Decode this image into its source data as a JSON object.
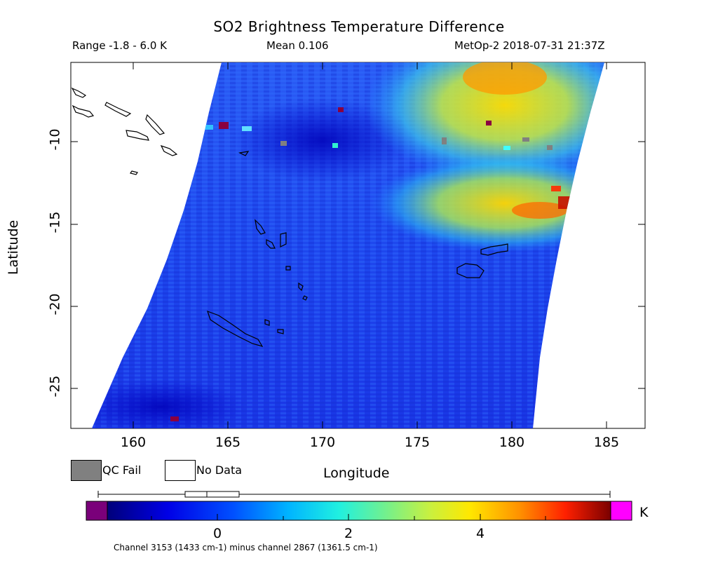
{
  "header": {
    "title": "SO2 Brightness Temperature Difference",
    "range": "Range -1.8 - 6.0 K",
    "mean": "Mean 0.106",
    "satellite_time": "MetOp-2 2018-07-31 21:37Z"
  },
  "axes": {
    "x_label": "Longitude",
    "y_label": "Latitude",
    "x_ticks": [
      "160",
      "165",
      "170",
      "175",
      "180",
      "185"
    ],
    "y_ticks": [
      "-10",
      "-15",
      "-20",
      "-25"
    ]
  },
  "legend": {
    "qc_fail": "QC Fail",
    "no_data": "No Data"
  },
  "colorbar": {
    "ticks": [
      "0",
      "2",
      "4"
    ],
    "unit": "K",
    "range": [
      -1.8,
      6.0
    ]
  },
  "footnote": "Channel 3153 (1433 cm-1) minus channel 2867 (1361.5 cm-1)",
  "colors": {
    "qc_fail": "#808080",
    "no_data": "#ffffff",
    "under_range": "#7a007a",
    "over_range": "#ff00ff",
    "background_field": "#1e46f0",
    "high_values": "#ffd200"
  }
}
